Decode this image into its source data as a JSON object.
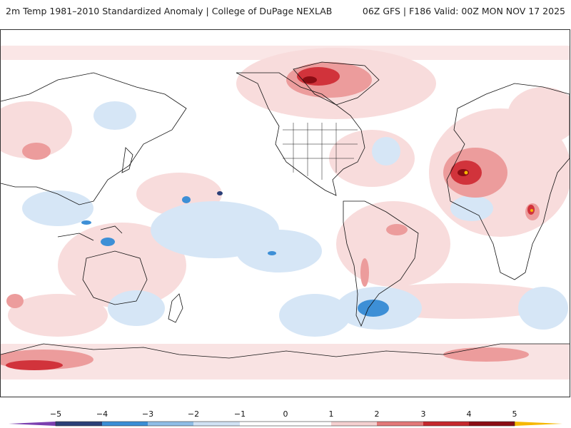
{
  "header": {
    "title": "2m Temp 1981–2010 Standardized Anomaly | College of DuPage NEXLAB",
    "run_info": "06Z GFS | F186 Valid: 00Z MON NOV 17 2025"
  },
  "colorbar": {
    "ticks": [
      "−5",
      "−4",
      "−3",
      "−2",
      "−1",
      "0",
      "1",
      "2",
      "3",
      "4",
      "5"
    ],
    "colors": [
      "#7b3fb0",
      "#2b3f77",
      "#3a8ed6",
      "#8fbde6",
      "#d1e2f4",
      "#ffffff",
      "#ffffff",
      "#f5d0d0",
      "#e27878",
      "#c5282d",
      "#8b0d14",
      "#f6b800"
    ]
  },
  "palette": {
    "warm_light": "#f8dcdc",
    "warm_mid": "#ec9c9c",
    "warm_strong": "#d1333b",
    "warm_extreme": "#8b0d14",
    "cold_light": "#d6e6f6",
    "cold_mid": "#9cc6ea",
    "cold_strong": "#3d8fd6",
    "cold_extreme": "#2b3f77",
    "coast": "#111111"
  }
}
